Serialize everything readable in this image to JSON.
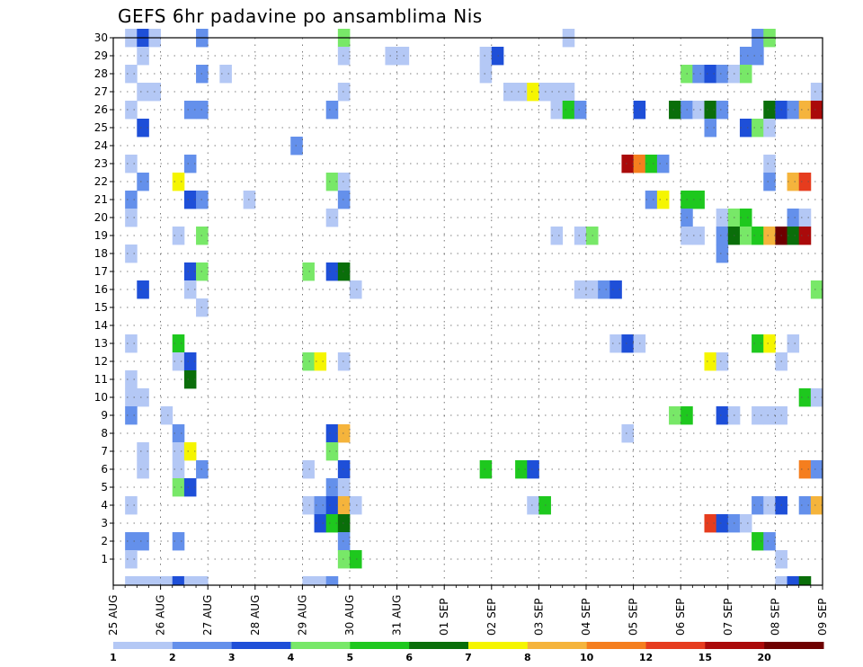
{
  "chart_data": {
    "type": "heatmap",
    "title": "GEFS 6hr padavine po ansamblima Nis",
    "xlabel": "",
    "ylabel": "",
    "ylim": [
      0,
      30
    ],
    "y_ticks": [
      1,
      2,
      3,
      4,
      5,
      6,
      7,
      8,
      9,
      10,
      11,
      12,
      13,
      14,
      15,
      16,
      17,
      18,
      19,
      20,
      21,
      22,
      23,
      24,
      25,
      26,
      27,
      28,
      29,
      30
    ],
    "x_ticks": [
      "25 AUG",
      "26 AUG",
      "27 AUG",
      "28 AUG",
      "29 AUG",
      "30 AUG",
      "31 AUG",
      "01 SEP",
      "02 SEP",
      "03 SEP",
      "04 SEP",
      "05 SEP",
      "06 SEP",
      "07 SEP",
      "08 SEP",
      "09 SEP"
    ],
    "steps_per_day": 4,
    "n_steps": 60,
    "grid": "dotted",
    "legend_position": "bottom",
    "colorbar": {
      "labels": [
        "1",
        "2",
        "3",
        "4",
        "5",
        "6",
        "7",
        "8",
        "10",
        "12",
        "15",
        "20"
      ],
      "colors": [
        "#b4c8f5",
        "#6490eb",
        "#1e4fd8",
        "#78e868",
        "#1ec81e",
        "#0a6e0a",
        "#f5f500",
        "#f5b43c",
        "#f57e1e",
        "#e63c1e",
        "#aa0a0a",
        "#6e0000"
      ]
    },
    "cells": [
      [
        1,
        30,
        1
      ],
      [
        2,
        30,
        3
      ],
      [
        3,
        30,
        1
      ],
      [
        7,
        30,
        2
      ],
      [
        19,
        30,
        4
      ],
      [
        38,
        30,
        1
      ],
      [
        54,
        30,
        2
      ],
      [
        55,
        30,
        4
      ],
      [
        2,
        29,
        1
      ],
      [
        19,
        29,
        1
      ],
      [
        23,
        29,
        1
      ],
      [
        24,
        29,
        1
      ],
      [
        31,
        29,
        1
      ],
      [
        32,
        29,
        3
      ],
      [
        53,
        29,
        2
      ],
      [
        54,
        29,
        2
      ],
      [
        1,
        28,
        1
      ],
      [
        7,
        28,
        2
      ],
      [
        9,
        28,
        1
      ],
      [
        31,
        28,
        1
      ],
      [
        48,
        28,
        4
      ],
      [
        49,
        28,
        2
      ],
      [
        50,
        28,
        3
      ],
      [
        51,
        28,
        2
      ],
      [
        52,
        28,
        1
      ],
      [
        53,
        28,
        4
      ],
      [
        2,
        27,
        1
      ],
      [
        3,
        27,
        1
      ],
      [
        19,
        27,
        1
      ],
      [
        33,
        27,
        1
      ],
      [
        34,
        27,
        1
      ],
      [
        35,
        27,
        7
      ],
      [
        36,
        27,
        1
      ],
      [
        37,
        27,
        1
      ],
      [
        38,
        27,
        1
      ],
      [
        59,
        27,
        1
      ],
      [
        1,
        26,
        1
      ],
      [
        6,
        26,
        2
      ],
      [
        7,
        26,
        2
      ],
      [
        18,
        26,
        2
      ],
      [
        37,
        26,
        1
      ],
      [
        38,
        26,
        5
      ],
      [
        39,
        26,
        2
      ],
      [
        44,
        26,
        3
      ],
      [
        47,
        26,
        6
      ],
      [
        48,
        26,
        2
      ],
      [
        49,
        26,
        1
      ],
      [
        50,
        26,
        6
      ],
      [
        51,
        26,
        2
      ],
      [
        55,
        26,
        6
      ],
      [
        56,
        26,
        3
      ],
      [
        57,
        26,
        2
      ],
      [
        58,
        26,
        8
      ],
      [
        59,
        26,
        11
      ],
      [
        2,
        25,
        3
      ],
      [
        50,
        25,
        2
      ],
      [
        53,
        25,
        3
      ],
      [
        54,
        25,
        4
      ],
      [
        55,
        25,
        1
      ],
      [
        15,
        24,
        2
      ],
      [
        1,
        23,
        1
      ],
      [
        6,
        23,
        2
      ],
      [
        43,
        23,
        11
      ],
      [
        44,
        23,
        9
      ],
      [
        45,
        23,
        5
      ],
      [
        46,
        23,
        2
      ],
      [
        55,
        23,
        1
      ],
      [
        2,
        22,
        2
      ],
      [
        5,
        22,
        7
      ],
      [
        18,
        22,
        4
      ],
      [
        19,
        22,
        1
      ],
      [
        55,
        22,
        2
      ],
      [
        57,
        22,
        8
      ],
      [
        58,
        22,
        10
      ],
      [
        1,
        21,
        2
      ],
      [
        6,
        21,
        3
      ],
      [
        7,
        21,
        2
      ],
      [
        11,
        21,
        1
      ],
      [
        19,
        21,
        2
      ],
      [
        45,
        21,
        2
      ],
      [
        46,
        21,
        7
      ],
      [
        48,
        21,
        5
      ],
      [
        49,
        21,
        5
      ],
      [
        1,
        20,
        1
      ],
      [
        18,
        20,
        1
      ],
      [
        48,
        20,
        2
      ],
      [
        51,
        20,
        1
      ],
      [
        52,
        20,
        4
      ],
      [
        53,
        20,
        5
      ],
      [
        57,
        20,
        2
      ],
      [
        58,
        20,
        1
      ],
      [
        5,
        19,
        1
      ],
      [
        7,
        19,
        4
      ],
      [
        37,
        19,
        1
      ],
      [
        39,
        19,
        1
      ],
      [
        40,
        19,
        4
      ],
      [
        48,
        19,
        1
      ],
      [
        49,
        19,
        1
      ],
      [
        51,
        19,
        2
      ],
      [
        52,
        19,
        6
      ],
      [
        53,
        19,
        4
      ],
      [
        54,
        19,
        5
      ],
      [
        55,
        19,
        8
      ],
      [
        56,
        19,
        12
      ],
      [
        57,
        19,
        6
      ],
      [
        58,
        19,
        11
      ],
      [
        1,
        18,
        1
      ],
      [
        51,
        18,
        2
      ],
      [
        6,
        17,
        3
      ],
      [
        7,
        17,
        4
      ],
      [
        16,
        17,
        4
      ],
      [
        18,
        17,
        3
      ],
      [
        19,
        17,
        6
      ],
      [
        2,
        16,
        3
      ],
      [
        6,
        16,
        1
      ],
      [
        20,
        16,
        1
      ],
      [
        39,
        16,
        1
      ],
      [
        40,
        16,
        1
      ],
      [
        41,
        16,
        2
      ],
      [
        42,
        16,
        3
      ],
      [
        59,
        16,
        4
      ],
      [
        7,
        15,
        1
      ],
      [
        1,
        13,
        1
      ],
      [
        5,
        13,
        5
      ],
      [
        42,
        13,
        1
      ],
      [
        43,
        13,
        3
      ],
      [
        44,
        13,
        1
      ],
      [
        54,
        13,
        5
      ],
      [
        55,
        13,
        7
      ],
      [
        57,
        13,
        1
      ],
      [
        5,
        12,
        1
      ],
      [
        6,
        12,
        3
      ],
      [
        16,
        12,
        4
      ],
      [
        17,
        12,
        7
      ],
      [
        19,
        12,
        1
      ],
      [
        50,
        12,
        7
      ],
      [
        51,
        12,
        1
      ],
      [
        56,
        12,
        1
      ],
      [
        6,
        11,
        6
      ],
      [
        1,
        11,
        1
      ],
      [
        1,
        10,
        1
      ],
      [
        2,
        10,
        1
      ],
      [
        58,
        10,
        5
      ],
      [
        59,
        10,
        1
      ],
      [
        1,
        9,
        2
      ],
      [
        4,
        9,
        1
      ],
      [
        47,
        9,
        4
      ],
      [
        48,
        9,
        5
      ],
      [
        51,
        9,
        3
      ],
      [
        52,
        9,
        1
      ],
      [
        54,
        9,
        1
      ],
      [
        55,
        9,
        1
      ],
      [
        56,
        9,
        1
      ],
      [
        5,
        8,
        2
      ],
      [
        18,
        8,
        3
      ],
      [
        19,
        8,
        8
      ],
      [
        43,
        8,
        1
      ],
      [
        2,
        7,
        1
      ],
      [
        5,
        7,
        1
      ],
      [
        6,
        7,
        7
      ],
      [
        18,
        7,
        4
      ],
      [
        2,
        6,
        1
      ],
      [
        5,
        6,
        1
      ],
      [
        7,
        6,
        2
      ],
      [
        16,
        6,
        1
      ],
      [
        19,
        6,
        3
      ],
      [
        31,
        6,
        5
      ],
      [
        34,
        6,
        5
      ],
      [
        35,
        6,
        3
      ],
      [
        58,
        6,
        9
      ],
      [
        59,
        6,
        2
      ],
      [
        5,
        5,
        4
      ],
      [
        6,
        5,
        3
      ],
      [
        18,
        5,
        2
      ],
      [
        19,
        5,
        1
      ],
      [
        1,
        4,
        1
      ],
      [
        16,
        4,
        1
      ],
      [
        17,
        4,
        2
      ],
      [
        18,
        4,
        3
      ],
      [
        19,
        4,
        8
      ],
      [
        20,
        4,
        1
      ],
      [
        35,
        4,
        1
      ],
      [
        36,
        4,
        5
      ],
      [
        54,
        4,
        2
      ],
      [
        55,
        4,
        1
      ],
      [
        56,
        4,
        3
      ],
      [
        58,
        4,
        2
      ],
      [
        59,
        4,
        8
      ],
      [
        17,
        3,
        3
      ],
      [
        18,
        3,
        5
      ],
      [
        19,
        3,
        6
      ],
      [
        50,
        3,
        10
      ],
      [
        51,
        3,
        3
      ],
      [
        52,
        3,
        2
      ],
      [
        53,
        3,
        1
      ],
      [
        1,
        2,
        2
      ],
      [
        2,
        2,
        2
      ],
      [
        5,
        2,
        2
      ],
      [
        19,
        2,
        2
      ],
      [
        54,
        2,
        5
      ],
      [
        55,
        2,
        2
      ],
      [
        1,
        1,
        1
      ],
      [
        19,
        1,
        4
      ],
      [
        20,
        1,
        5
      ],
      [
        56,
        1,
        1
      ],
      [
        1,
        0,
        1
      ],
      [
        2,
        0,
        1
      ],
      [
        3,
        0,
        1
      ],
      [
        4,
        0,
        1
      ],
      [
        5,
        0,
        3
      ],
      [
        6,
        0,
        1
      ],
      [
        7,
        0,
        1
      ],
      [
        16,
        0,
        1
      ],
      [
        17,
        0,
        1
      ],
      [
        18,
        0,
        2
      ],
      [
        56,
        0,
        1
      ],
      [
        57,
        0,
        3
      ],
      [
        58,
        0,
        6
      ]
    ]
  }
}
